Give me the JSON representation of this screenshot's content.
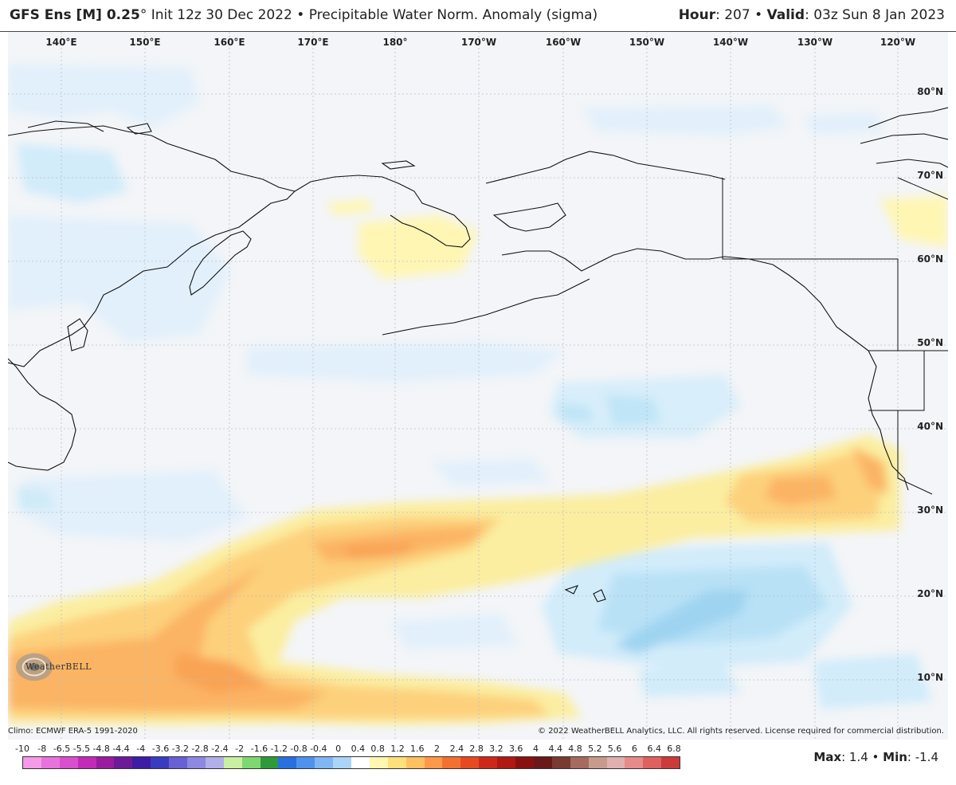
{
  "header": {
    "model": "GFS Ens [M] 0.25",
    "degree": "°",
    "init": " Init 12z 30 Dec 2022 • Precipitable Water Norm. Anomaly (sigma)",
    "hour_label": "Hour",
    "hour_value": ": 207 • ",
    "valid_label": "Valid",
    "valid_value": ": 03z Sun 8 Jan 2023"
  },
  "map": {
    "lon_labels": [
      "140°E",
      "150°E",
      "160°E",
      "170°E",
      "180°",
      "170°W",
      "160°W",
      "150°W",
      "140°W",
      "130°W",
      "120°W"
    ],
    "lat_labels": [
      "80°N",
      "70°N",
      "60°N",
      "50°N",
      "40°N",
      "30°N",
      "20°N",
      "10°N"
    ]
  },
  "logo": {
    "text": "WeatherBELL"
  },
  "footer": {
    "climo": "Climo: ECMWF ERA-5 1991-2020",
    "copyright": "© 2022 WeatherBELL Analytics, LLC. All rights reserved. License required for commercial distribution.",
    "max_label": "Max",
    "max_value": ": 1.4 • ",
    "min_label": "Min",
    "min_value": ": -1.4"
  },
  "scale": {
    "labels": [
      "-10",
      "-8",
      "-6.5",
      "-5.5",
      "-4.8",
      "-4.4",
      "-4",
      "-3.6",
      "-3.2",
      "-2.8",
      "-2.4",
      "-2",
      "-1.6",
      "-1.2",
      "-0.8",
      "-0.4",
      "0",
      "0.4",
      "0.8",
      "1.2",
      "1.6",
      "2",
      "2.4",
      "2.8",
      "3.2",
      "3.6",
      "4",
      "4.4",
      "4.8",
      "5.2",
      "5.6",
      "6",
      "6.4",
      "6.8"
    ],
    "colors": [
      "#f59ae8",
      "#e873dc",
      "#d94fce",
      "#c42ab8",
      "#9c1aa0",
      "#6c1a9a",
      "#3d1ca6",
      "#3a3cc0",
      "#6860d4",
      "#8d88e0",
      "#b2aeea",
      "#c8f0a0",
      "#7ed870",
      "#2f9a3a",
      "#2a6fe0",
      "#4f92ee",
      "#7fb6f4",
      "#aad4f8",
      "#ffffff",
      "#fff7b0",
      "#ffe07a",
      "#ffc060",
      "#ff9848",
      "#f47030",
      "#e84a20",
      "#d02818",
      "#b01810",
      "#8a1010",
      "#6a1818",
      "#7a3a32",
      "#a66a5e",
      "#c89a8c",
      "#e0b0b0",
      "#e88a8a",
      "#e06060",
      "#cc3a3a"
    ]
  }
}
